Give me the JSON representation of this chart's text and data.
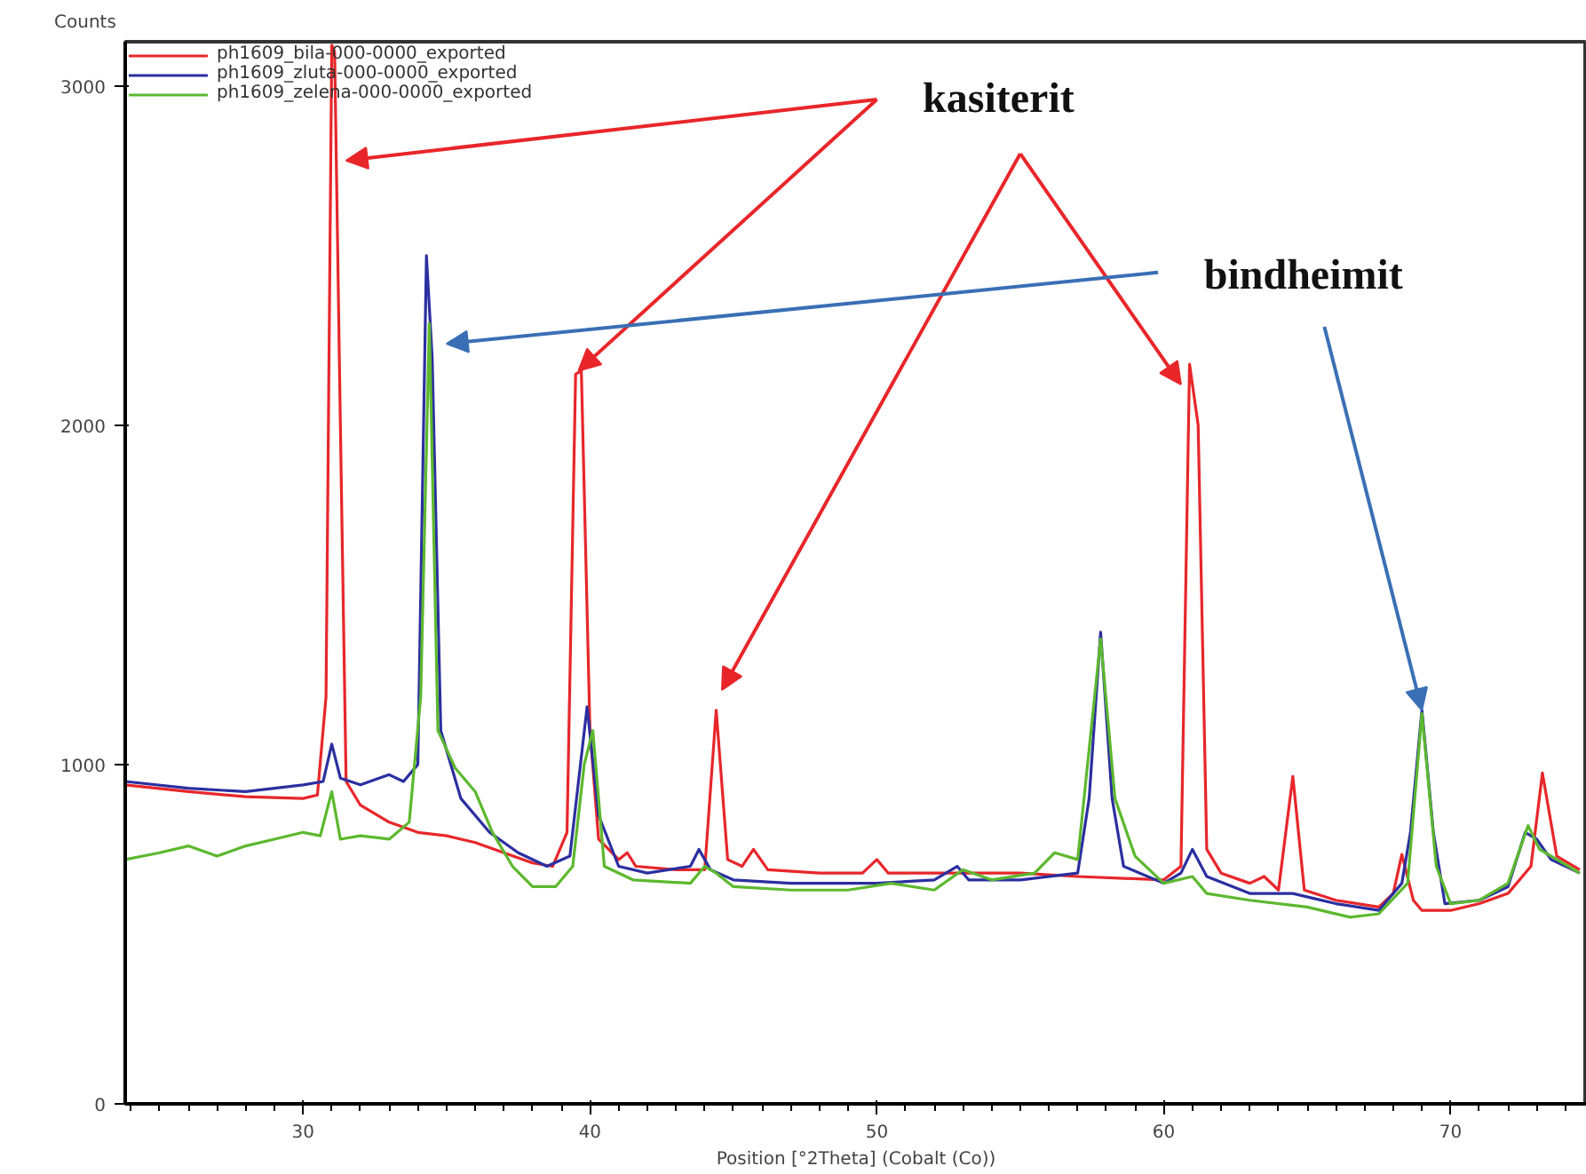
{
  "chart_data": {
    "type": "line",
    "xlabel": "Position [°2Theta] (Cobalt (Co))",
    "ylabel": "Counts",
    "xlim": [
      23.8,
      74.75
    ],
    "ylim": [
      0,
      3130
    ],
    "xticks": [
      30,
      40,
      50,
      60,
      70
    ],
    "yticks": [
      0,
      1000,
      2000,
      3000
    ],
    "grid": false,
    "legend": "top left",
    "line_style": "solid",
    "marker": "none",
    "annotations": [
      {
        "text": "kasiterit",
        "x": 39.6,
        "y": 2160
      },
      {
        "text": "bindheimit",
        "x": 69,
        "y": 1160
      }
    ],
    "series": [
      {
        "name": "ph1609_bila-000-0000_exported",
        "color": "#e8262a",
        "x": [
          23.8,
          26,
          28,
          30,
          30.5,
          30.8,
          31.0,
          31.1,
          31.3,
          31.5,
          32,
          33,
          34,
          35,
          36,
          37,
          38,
          38.7,
          39.2,
          39.5,
          39.7,
          40.0,
          40.3,
          41,
          41.3,
          41.6,
          43,
          44,
          44.4,
          44.8,
          45.3,
          45.7,
          46.2,
          48,
          49.5,
          50,
          50.4,
          52,
          55,
          57,
          60,
          60.6,
          60.9,
          61.2,
          61.5,
          62,
          63,
          63.5,
          64,
          64.5,
          64.9,
          66,
          67.5,
          68.0,
          68.3,
          68.7,
          69,
          70,
          71,
          72,
          72.8,
          73.2,
          73.7,
          74.5
        ],
        "values": [
          940,
          920,
          905,
          900,
          910,
          1200,
          3120,
          3100,
          2000,
          950,
          880,
          830,
          800,
          790,
          770,
          740,
          710,
          700,
          800,
          2150,
          2160,
          1100,
          780,
          720,
          740,
          700,
          690,
          690,
          1160,
          720,
          700,
          750,
          690,
          680,
          680,
          720,
          680,
          680,
          680,
          670,
          660,
          700,
          2180,
          2000,
          750,
          680,
          650,
          670,
          630,
          965,
          630,
          600,
          580,
          620,
          735,
          600,
          570,
          570,
          590,
          620,
          700,
          975,
          730,
          690
        ]
      },
      {
        "name": "ph1609_zluta-000-0000_exported",
        "color": "#2b2fa0",
        "x": [
          23.8,
          26,
          28,
          30,
          30.7,
          31.0,
          31.3,
          32,
          33,
          33.5,
          34,
          34.3,
          34.5,
          34.8,
          35.5,
          36.5,
          37.5,
          38.5,
          39.3,
          39.9,
          40.3,
          41,
          42,
          43.5,
          43.8,
          44.2,
          45,
          47,
          50,
          52,
          52.8,
          53.2,
          55,
          57,
          57.4,
          57.8,
          58.2,
          58.6,
          60,
          60.6,
          61,
          61.5,
          63,
          64.5,
          66,
          67.5,
          68.3,
          68.6,
          69,
          69.4,
          69.8,
          71,
          72,
          72.6,
          73,
          73.5,
          74.5
        ],
        "values": [
          950,
          930,
          920,
          940,
          950,
          1060,
          960,
          940,
          970,
          950,
          1000,
          2500,
          2200,
          1100,
          900,
          800,
          740,
          700,
          730,
          1170,
          850,
          700,
          680,
          700,
          750,
          690,
          660,
          650,
          650,
          660,
          700,
          660,
          660,
          680,
          900,
          1390,
          900,
          700,
          650,
          680,
          750,
          670,
          620,
          620,
          590,
          570,
          650,
          800,
          1160,
          800,
          590,
          600,
          640,
          800,
          780,
          720,
          680
        ]
      },
      {
        "name": "ph1609_zelena-000-0000_exported",
        "color": "#5cb82e",
        "x": [
          23.8,
          25,
          26,
          27,
          28,
          29,
          30,
          30.6,
          31.0,
          31.3,
          32,
          33,
          33.7,
          34.1,
          34.4,
          34.7,
          35.3,
          36,
          36.6,
          37.3,
          38,
          38.8,
          39.4,
          39.8,
          40.1,
          40.5,
          41.5,
          43.5,
          44,
          44.4,
          45,
          47,
          49,
          50.5,
          52,
          53,
          54,
          55.5,
          56.2,
          57,
          57.8,
          58.3,
          59,
          60,
          61,
          61.5,
          63,
          65,
          66.5,
          67.5,
          68.5,
          69,
          69.5,
          70,
          71,
          72,
          72.7,
          73.1,
          74.5
        ],
        "values": [
          720,
          740,
          760,
          730,
          760,
          780,
          800,
          790,
          920,
          780,
          790,
          780,
          830,
          1200,
          2300,
          1100,
          990,
          920,
          800,
          700,
          640,
          640,
          700,
          1000,
          1100,
          700,
          660,
          650,
          700,
          680,
          640,
          630,
          630,
          650,
          630,
          690,
          660,
          680,
          740,
          720,
          1370,
          900,
          730,
          650,
          670,
          620,
          600,
          580,
          550,
          560,
          650,
          1150,
          700,
          590,
          600,
          650,
          820,
          750,
          680
        ]
      }
    ]
  }
}
